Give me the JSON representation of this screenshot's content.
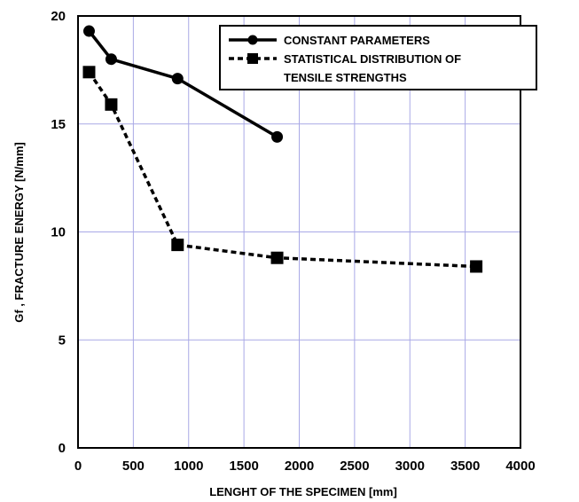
{
  "chart_data": {
    "type": "line",
    "title": "",
    "xlabel": "LENGHT OF THE SPECIMEN [mm]",
    "ylabel": "Gf , FRACTURE ENERGY [N/mm]",
    "xlim": [
      0,
      4000
    ],
    "ylim": [
      0,
      20
    ],
    "xticks": [
      "0",
      "500",
      "1000",
      "1500",
      "2000",
      "2500",
      "3000",
      "3500",
      "4000"
    ],
    "yticks": [
      "0",
      "5",
      "10",
      "15",
      "20"
    ],
    "grid": true,
    "legend_position": "top-right",
    "series": [
      {
        "name": "CONSTANT PARAMETERS",
        "marker": "circle",
        "line": "solid",
        "x": [
          100,
          300,
          900,
          1800
        ],
        "y": [
          19.3,
          18.0,
          17.1,
          14.4
        ]
      },
      {
        "name": "STATISTICAL DISTRIBUTION OF TENSILE STRENGTHS",
        "legend_lines": [
          "STATISTICAL DISTRIBUTION OF",
          "TENSILE STRENGTHS"
        ],
        "marker": "square",
        "line": "dashed",
        "x": [
          100,
          300,
          900,
          1800,
          3600
        ],
        "y": [
          17.4,
          15.9,
          9.4,
          8.8,
          8.4
        ]
      }
    ]
  }
}
